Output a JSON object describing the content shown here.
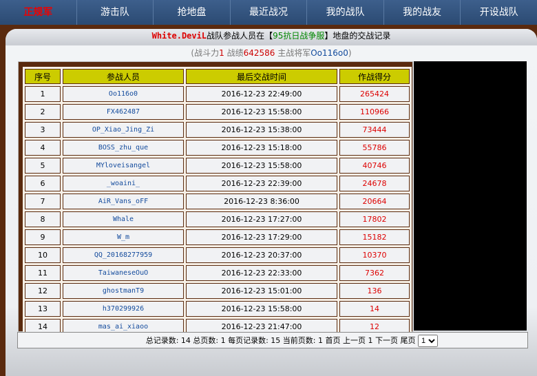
{
  "nav": [
    "正规军",
    "游击队",
    "抢地盘",
    "最近战况",
    "我的战队",
    "我的战友",
    "开设战队"
  ],
  "title": {
    "team": "White.DeviL",
    "pre": "战队参战人员在【",
    "server": "95抗日战争服",
    "post": "】地盘的交战记录"
  },
  "sub": {
    "l1": "(战斗力",
    "power": "1",
    "l2": " 战绩",
    "score": "642586",
    "l3": " 主战将军",
    "general": "Oo116o0",
    "l4": ")"
  },
  "table": {
    "headers": [
      "序号",
      "参战人员",
      "最后交战时间",
      "作战得分"
    ],
    "rows": [
      [
        "1",
        "Oo116o0",
        "2016-12-23 22:49:00",
        "265424"
      ],
      [
        "2",
        "FX462487",
        "2016-12-23 15:58:00",
        "110966"
      ],
      [
        "3",
        "OP_Xiao_Jing_Zi",
        "2016-12-23 15:38:00",
        "73444"
      ],
      [
        "4",
        "BOSS_zhu_que",
        "2016-12-23 15:18:00",
        "55786"
      ],
      [
        "5",
        "MYloveisangel",
        "2016-12-23 15:58:00",
        "40746"
      ],
      [
        "6",
        "_woaini_",
        "2016-12-23 22:39:00",
        "24678"
      ],
      [
        "7",
        "AiR_Vans_oFF",
        "2016-12-23 8:36:00",
        "20664"
      ],
      [
        "8",
        "Whale",
        "2016-12-23 17:27:00",
        "17802"
      ],
      [
        "9",
        "W_m",
        "2016-12-23 17:29:00",
        "15182"
      ],
      [
        "10",
        "QQ_20168277959",
        "2016-12-23 20:37:00",
        "10370"
      ],
      [
        "11",
        "TaiwaneseOuO",
        "2016-12-23 22:33:00",
        "7362"
      ],
      [
        "12",
        "ghostmanT9",
        "2016-12-23 15:01:00",
        "136"
      ],
      [
        "13",
        "h370299926",
        "2016-12-23 15:58:00",
        "14"
      ],
      [
        "14",
        "mas_ai_xiaoo",
        "2016-12-23 21:47:00",
        "12"
      ]
    ]
  },
  "pager": {
    "info": "总记录数: 14 总页数: 1 每页记录数: 15 当前页数: 1",
    "first": "首页",
    "prev": "上一页",
    "page": "1",
    "next": "下一页",
    "last": "尾页",
    "selected": "1"
  }
}
